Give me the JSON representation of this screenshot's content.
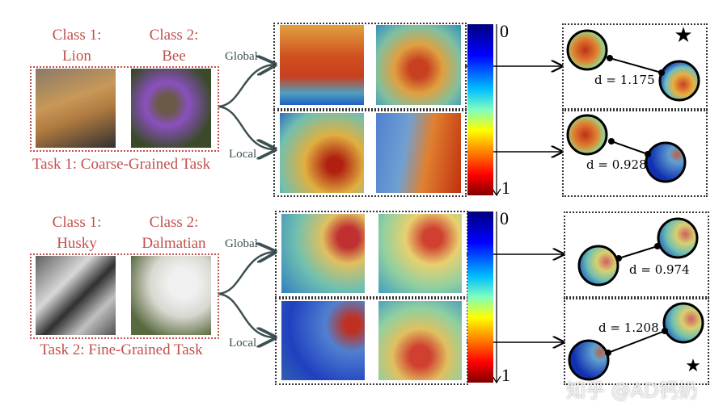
{
  "tasks": [
    {
      "class1_label": "Class 1:",
      "class1_name": "Lion",
      "class2_label": "Class 2:",
      "class2_name": "Bee",
      "title": "Task 1: Coarse-Grained Task",
      "global_label": "Global",
      "local_label": "Local",
      "global_distance": "d = 1.175",
      "local_distance": "d = 0.928",
      "starred": "global"
    },
    {
      "class1_label": "Class 1:",
      "class1_name": "Husky",
      "class2_label": "Class 2:",
      "class2_name": "Dalmatian",
      "title": "Task 2: Fine-Grained Task",
      "global_label": "Global",
      "local_label": "Local",
      "global_distance": "d = 0.974",
      "local_distance": "d = 1.208",
      "starred": "local"
    }
  ],
  "colorbar": {
    "top_label": "0",
    "bottom_label": "1",
    "colormap": "jet (reversed)"
  },
  "colors": {
    "task_text": "#c0504d",
    "label_text": "#3d5054"
  },
  "watermark": "知乎 @AD钙奶"
}
